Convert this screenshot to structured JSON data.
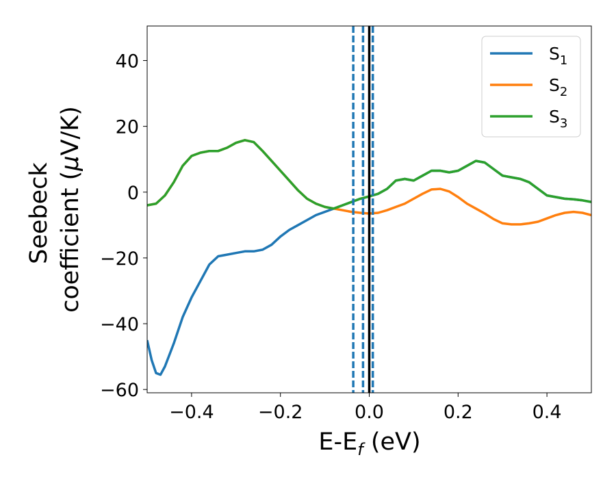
{
  "chart_data": {
    "type": "line",
    "title": "",
    "xlabel": "E-E",
    "xlabel_sub": "f",
    "xlabel_unit": " (eV)",
    "ylabel_line1": "Seebeck",
    "ylabel_line2": "coefficient  (",
    "ylabel_mu": "μ",
    "ylabel_unit": "V/K)",
    "xlim": [
      -0.5,
      0.5
    ],
    "ylim": [
      -61,
      50.5
    ],
    "x_ticks": [
      {
        "value": -0.4,
        "label": "−0.4"
      },
      {
        "value": -0.2,
        "label": "−0.2"
      },
      {
        "value": 0.0,
        "label": "0.0"
      },
      {
        "value": 0.2,
        "label": "0.2"
      },
      {
        "value": 0.4,
        "label": "0.4"
      }
    ],
    "y_ticks": [
      {
        "value": 40,
        "label": "40"
      },
      {
        "value": 20,
        "label": "20"
      },
      {
        "value": 0,
        "label": "0"
      },
      {
        "value": -20,
        "label": "−20"
      },
      {
        "value": -40,
        "label": "−40"
      },
      {
        "value": -60,
        "label": "−60"
      }
    ],
    "grid": false,
    "legend_position": "top-right",
    "series": [
      {
        "name": "S",
        "name_sub": "1",
        "color": "#1f77b4",
        "points": [
          [
            -0.5,
            -45
          ],
          [
            -0.49,
            -51
          ],
          [
            -0.48,
            -55
          ],
          [
            -0.47,
            -55.5
          ],
          [
            -0.46,
            -53
          ],
          [
            -0.44,
            -46
          ],
          [
            -0.42,
            -38
          ],
          [
            -0.4,
            -32
          ],
          [
            -0.38,
            -27
          ],
          [
            -0.36,
            -22
          ],
          [
            -0.34,
            -19.5
          ],
          [
            -0.32,
            -19
          ],
          [
            -0.3,
            -18.5
          ],
          [
            -0.28,
            -18
          ],
          [
            -0.26,
            -18
          ],
          [
            -0.24,
            -17.5
          ],
          [
            -0.22,
            -16
          ],
          [
            -0.2,
            -13.5
          ],
          [
            -0.18,
            -11.5
          ],
          [
            -0.16,
            -10
          ],
          [
            -0.14,
            -8.5
          ],
          [
            -0.12,
            -7
          ],
          [
            -0.1,
            -6
          ],
          [
            -0.08,
            -5
          ],
          [
            -0.06,
            -4
          ],
          [
            -0.04,
            -3
          ],
          [
            -0.02,
            -2
          ],
          [
            0.0,
            -1.3
          ],
          [
            0.02,
            -0.5
          ],
          [
            0.04,
            1
          ],
          [
            0.06,
            3.5
          ],
          [
            0.08,
            4
          ],
          [
            0.1,
            3.5
          ],
          [
            0.12,
            5
          ],
          [
            0.14,
            6.5
          ],
          [
            0.16,
            6.5
          ],
          [
            0.18,
            6
          ],
          [
            0.2,
            6.5
          ],
          [
            0.22,
            8
          ],
          [
            0.24,
            9.5
          ],
          [
            0.26,
            9
          ],
          [
            0.28,
            7
          ],
          [
            0.3,
            5
          ],
          [
            0.32,
            4.5
          ],
          [
            0.34,
            4
          ],
          [
            0.36,
            3
          ],
          [
            0.38,
            1
          ],
          [
            0.4,
            -1
          ],
          [
            0.42,
            -1.5
          ],
          [
            0.44,
            -2
          ],
          [
            0.46,
            -2.2
          ],
          [
            0.48,
            -2.5
          ],
          [
            0.5,
            -3
          ]
        ]
      },
      {
        "name": "S",
        "name_sub": "2",
        "color": "#ff7f0e",
        "points": [
          [
            -0.5,
            -4
          ],
          [
            -0.48,
            -3.5
          ],
          [
            -0.46,
            -1
          ],
          [
            -0.44,
            3
          ],
          [
            -0.42,
            8
          ],
          [
            -0.4,
            11
          ],
          [
            -0.38,
            12
          ],
          [
            -0.36,
            12.5
          ],
          [
            -0.34,
            12.5
          ],
          [
            -0.32,
            13.5
          ],
          [
            -0.3,
            15
          ],
          [
            -0.28,
            15.8
          ],
          [
            -0.26,
            15.2
          ],
          [
            -0.24,
            12.5
          ],
          [
            -0.22,
            9.5
          ],
          [
            -0.2,
            6.5
          ],
          [
            -0.18,
            3.5
          ],
          [
            -0.16,
            0.5
          ],
          [
            -0.14,
            -2
          ],
          [
            -0.12,
            -3.5
          ],
          [
            -0.1,
            -4.5
          ],
          [
            -0.08,
            -5
          ],
          [
            -0.06,
            -5.5
          ],
          [
            -0.04,
            -6
          ],
          [
            -0.02,
            -6.3
          ],
          [
            0.0,
            -6.5
          ],
          [
            0.02,
            -6.3
          ],
          [
            0.04,
            -5.5
          ],
          [
            0.06,
            -4.5
          ],
          [
            0.08,
            -3.5
          ],
          [
            0.1,
            -2
          ],
          [
            0.12,
            -0.5
          ],
          [
            0.14,
            0.8
          ],
          [
            0.16,
            1
          ],
          [
            0.18,
            0.2
          ],
          [
            0.2,
            -1.5
          ],
          [
            0.22,
            -3.5
          ],
          [
            0.24,
            -5
          ],
          [
            0.26,
            -6.5
          ],
          [
            0.28,
            -8.2
          ],
          [
            0.3,
            -9.5
          ],
          [
            0.32,
            -9.8
          ],
          [
            0.34,
            -9.8
          ],
          [
            0.36,
            -9.5
          ],
          [
            0.38,
            -9
          ],
          [
            0.4,
            -8
          ],
          [
            0.42,
            -7
          ],
          [
            0.44,
            -6.3
          ],
          [
            0.46,
            -6
          ],
          [
            0.48,
            -6.3
          ],
          [
            0.5,
            -7
          ]
        ]
      },
      {
        "name": "S",
        "name_sub": "3",
        "color": "#2ca02c",
        "points": [
          [
            -0.5,
            -4
          ],
          [
            -0.48,
            -3.5
          ],
          [
            -0.46,
            -1
          ],
          [
            -0.44,
            3
          ],
          [
            -0.42,
            8
          ],
          [
            -0.4,
            11
          ],
          [
            -0.38,
            12
          ],
          [
            -0.36,
            12.5
          ],
          [
            -0.34,
            12.5
          ],
          [
            -0.32,
            13.5
          ],
          [
            -0.3,
            15
          ],
          [
            -0.28,
            15.8
          ],
          [
            -0.26,
            15.2
          ],
          [
            -0.24,
            12.5
          ],
          [
            -0.22,
            9.5
          ],
          [
            -0.2,
            6.5
          ],
          [
            -0.18,
            3.5
          ],
          [
            -0.16,
            0.5
          ],
          [
            -0.14,
            -2
          ],
          [
            -0.12,
            -3.5
          ],
          [
            -0.1,
            -4.5
          ],
          [
            -0.08,
            -5
          ],
          [
            -0.06,
            -4
          ],
          [
            -0.04,
            -3
          ],
          [
            -0.02,
            -2
          ],
          [
            0.0,
            -1.3
          ],
          [
            0.02,
            -0.5
          ],
          [
            0.04,
            1
          ],
          [
            0.06,
            3.5
          ],
          [
            0.08,
            4
          ],
          [
            0.1,
            3.5
          ],
          [
            0.12,
            5
          ],
          [
            0.14,
            6.5
          ],
          [
            0.16,
            6.5
          ],
          [
            0.18,
            6
          ],
          [
            0.2,
            6.5
          ],
          [
            0.22,
            8
          ],
          [
            0.24,
            9.5
          ],
          [
            0.26,
            9
          ],
          [
            0.28,
            7
          ],
          [
            0.3,
            5
          ],
          [
            0.32,
            4.5
          ],
          [
            0.34,
            4
          ],
          [
            0.36,
            3
          ],
          [
            0.38,
            1
          ],
          [
            0.4,
            -1
          ],
          [
            0.42,
            -1.5
          ],
          [
            0.44,
            -2
          ],
          [
            0.46,
            -2.2
          ],
          [
            0.48,
            -2.5
          ],
          [
            0.5,
            -3
          ]
        ]
      }
    ],
    "vertical_lines": [
      {
        "x": 0.0,
        "color": "#000000",
        "style": "solid"
      },
      {
        "x": -0.036,
        "color": "#1f77b4",
        "style": "dashed"
      },
      {
        "x": -0.014,
        "color": "#1f77b4",
        "style": "dashed"
      },
      {
        "x": 0.008,
        "color": "#1f77b4",
        "style": "dashed"
      }
    ]
  }
}
